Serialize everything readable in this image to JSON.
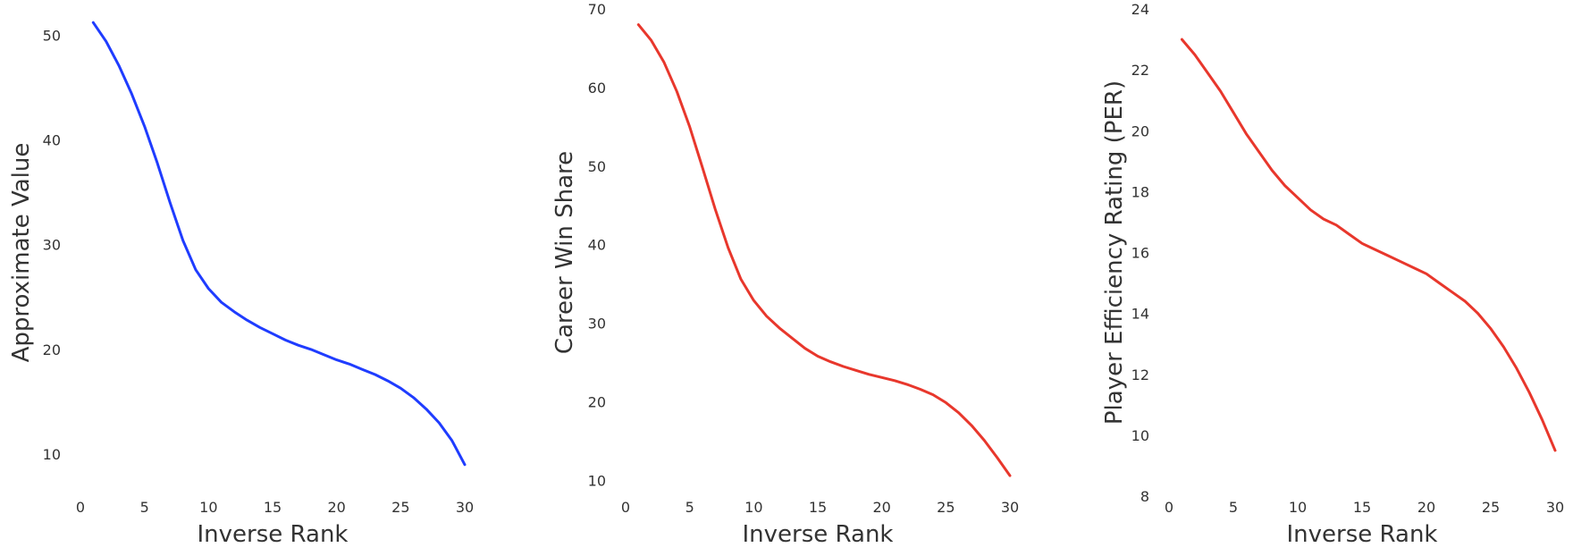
{
  "chart_data": [
    {
      "type": "line",
      "xlabel": "Inverse Rank",
      "ylabel": "Approximate Value",
      "xlim": [
        0,
        30
      ],
      "ylim": [
        6,
        52.5
      ],
      "xticks": [
        0,
        5,
        10,
        15,
        20,
        25,
        30
      ],
      "yticks": [
        10,
        20,
        30,
        40,
        50
      ],
      "grid": false,
      "series": [
        {
          "color": "#1f3cff",
          "x": [
            1,
            2,
            3,
            4,
            5,
            6,
            7,
            8,
            9,
            10,
            11,
            12,
            13,
            14,
            15,
            16,
            17,
            18,
            19,
            20,
            21,
            22,
            23,
            24,
            25,
            26,
            27,
            28,
            29,
            30
          ],
          "values": [
            51.2,
            49.4,
            47.1,
            44.4,
            41.3,
            37.8,
            34.0,
            30.4,
            27.6,
            25.8,
            24.5,
            23.6,
            22.8,
            22.1,
            21.5,
            20.9,
            20.4,
            20.0,
            19.5,
            19.0,
            18.6,
            18.1,
            17.6,
            17.0,
            16.3,
            15.4,
            14.3,
            13.0,
            11.3,
            9.0
          ]
        }
      ]
    },
    {
      "type": "line",
      "xlabel": "Inverse Rank",
      "ylabel": "Career Win Share",
      "xlim": [
        0,
        30
      ],
      "ylim": [
        8,
        70
      ],
      "xticks": [
        0,
        5,
        10,
        15,
        20,
        25,
        30
      ],
      "yticks": [
        10,
        20,
        30,
        40,
        50,
        60,
        70
      ],
      "grid": false,
      "series": [
        {
          "color": "#e8372c",
          "x": [
            1,
            2,
            3,
            4,
            5,
            6,
            7,
            8,
            9,
            10,
            11,
            12,
            13,
            14,
            15,
            16,
            17,
            18,
            19,
            20,
            21,
            22,
            23,
            24,
            25,
            26,
            27,
            28,
            29,
            30
          ],
          "values": [
            68.0,
            66.0,
            63.2,
            59.5,
            55.0,
            49.8,
            44.5,
            39.6,
            35.6,
            32.9,
            30.9,
            29.4,
            28.1,
            26.8,
            25.8,
            25.1,
            24.5,
            24.0,
            23.5,
            23.1,
            22.7,
            22.2,
            21.6,
            20.9,
            19.9,
            18.6,
            17.0,
            15.1,
            12.9,
            10.6
          ]
        }
      ]
    },
    {
      "type": "line",
      "xlabel": "Inverse Rank",
      "ylabel": "Player Efficiency Rating (PER)",
      "xlim": [
        0,
        30
      ],
      "ylim": [
        8,
        24
      ],
      "xticks": [
        0,
        5,
        10,
        15,
        20,
        25,
        30
      ],
      "yticks": [
        8,
        10,
        12,
        14,
        16,
        18,
        20,
        22,
        24
      ],
      "grid": false,
      "series": [
        {
          "color": "#e8372c",
          "x": [
            1,
            2,
            3,
            4,
            5,
            6,
            7,
            8,
            9,
            10,
            11,
            12,
            13,
            14,
            15,
            16,
            17,
            18,
            19,
            20,
            21,
            22,
            23,
            24,
            25,
            26,
            27,
            28,
            29,
            30
          ],
          "values": [
            23.0,
            22.5,
            21.9,
            21.3,
            20.6,
            19.9,
            19.3,
            18.7,
            18.2,
            17.8,
            17.4,
            17.1,
            16.9,
            16.6,
            16.3,
            16.1,
            15.9,
            15.7,
            15.5,
            15.3,
            15.0,
            14.7,
            14.4,
            14.0,
            13.5,
            12.9,
            12.2,
            11.4,
            10.5,
            9.5
          ]
        }
      ]
    }
  ]
}
